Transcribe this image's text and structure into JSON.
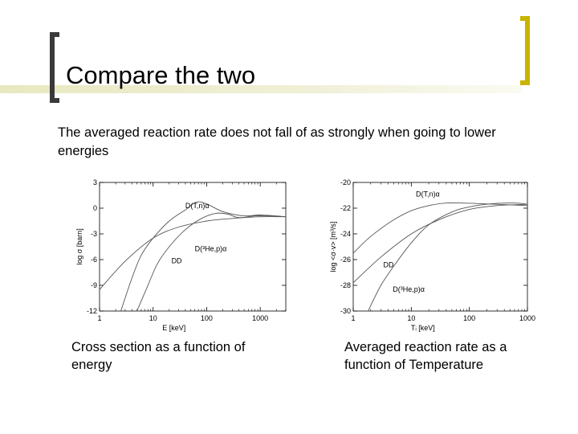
{
  "slide": {
    "title": "Compare the two",
    "intro": "The averaged reaction rate does not fall of as strongly when going to lower energies",
    "captions": [
      "Cross section as a function of energy",
      "Averaged reaction rate as a function of Temperature"
    ]
  },
  "chart_data": [
    {
      "type": "line",
      "title": "",
      "xlabel": "E  [keV]",
      "ylabel": "log  σ  [barn]",
      "x_scale": "log",
      "xlim": [
        1,
        3000
      ],
      "ylim": [
        -12,
        3
      ],
      "x_ticks": [
        1,
        10,
        100,
        1000
      ],
      "x_tick_labels": [
        "1",
        "10",
        "100",
        "1000"
      ],
      "y_ticks": [
        3,
        0,
        -3,
        -6,
        -9,
        -12
      ],
      "y_tick_labels": [
        "3",
        "0",
        "-3",
        "-6",
        "-9",
        "-12"
      ],
      "series": [
        {
          "name": "D(T,n)α",
          "x": [
            2.5,
            4,
            6,
            10,
            20,
            40,
            64,
            100,
            200,
            500,
            1000,
            3000
          ],
          "y": [
            -12,
            -8.2,
            -5.5,
            -3.5,
            -1.5,
            -0.2,
            0.7,
            0.5,
            -0.4,
            -0.9,
            -0.8,
            -1.0
          ]
        },
        {
          "name": "D(³He,p)α",
          "x": [
            5,
            8,
            12,
            20,
            40,
            80,
            150,
            250,
            400,
            800,
            1500,
            3000
          ],
          "y": [
            -12,
            -9,
            -6.5,
            -4.5,
            -2.5,
            -1.2,
            -0.6,
            -0.7,
            -1.1,
            -0.9,
            -0.9,
            -1.0
          ]
        },
        {
          "name": "DD",
          "x": [
            1,
            3,
            10,
            30,
            100,
            300,
            1000,
            3000
          ],
          "y": [
            -9.5,
            -6.2,
            -3.5,
            -2.2,
            -1.5,
            -1.2,
            -1.0,
            -1.0
          ]
        }
      ],
      "annotations": [
        {
          "text": "D(T,n)α",
          "x": 40,
          "y": 0.0
        },
        {
          "text": "D(³He,p)α",
          "x": 60,
          "y": -5.0
        },
        {
          "text": "DD",
          "x": 22,
          "y": -6.4
        }
      ]
    },
    {
      "type": "line",
      "title": "",
      "xlabel": "Tᵢ  [keV]",
      "ylabel": "log <σ·v>  [m³/s]",
      "x_scale": "log",
      "xlim": [
        1,
        1000
      ],
      "ylim": [
        -30,
        -20
      ],
      "x_ticks": [
        1,
        10,
        100,
        1000
      ],
      "x_tick_labels": [
        "1",
        "10",
        "100",
        "1000"
      ],
      "y_ticks": [
        -20,
        -22,
        -24,
        -26,
        -28,
        -30
      ],
      "y_tick_labels": [
        "-20",
        "-22",
        "-24",
        "-26",
        "-28",
        "-30"
      ],
      "series": [
        {
          "name": "D(T,n)α",
          "x": [
            1,
            2,
            5,
            10,
            20,
            40,
            70,
            150,
            300,
            1000
          ],
          "y": [
            -25.5,
            -24.2,
            -22.9,
            -22.2,
            -21.8,
            -21.6,
            -21.6,
            -21.65,
            -21.7,
            -21.8
          ]
        },
        {
          "name": "DD",
          "x": [
            1,
            3,
            10,
            30,
            100,
            300,
            1000
          ],
          "y": [
            -27.8,
            -25.8,
            -24.0,
            -22.9,
            -22.1,
            -21.8,
            -21.7
          ]
        },
        {
          "name": "D(³He,p)α",
          "x": [
            1.8,
            3,
            5,
            10,
            20,
            50,
            100,
            250,
            600,
            1000
          ],
          "y": [
            -30,
            -28.0,
            -26.5,
            -24.7,
            -23.3,
            -22.3,
            -21.9,
            -21.65,
            -21.6,
            -21.7
          ]
        }
      ],
      "annotations": [
        {
          "text": "D(T,n)α",
          "x": 12,
          "y": -21.1
        },
        {
          "text": "DD",
          "x": 3.3,
          "y": -26.6
        },
        {
          "text": "D(³He,p)α",
          "x": 4.8,
          "y": -28.5
        }
      ]
    }
  ]
}
